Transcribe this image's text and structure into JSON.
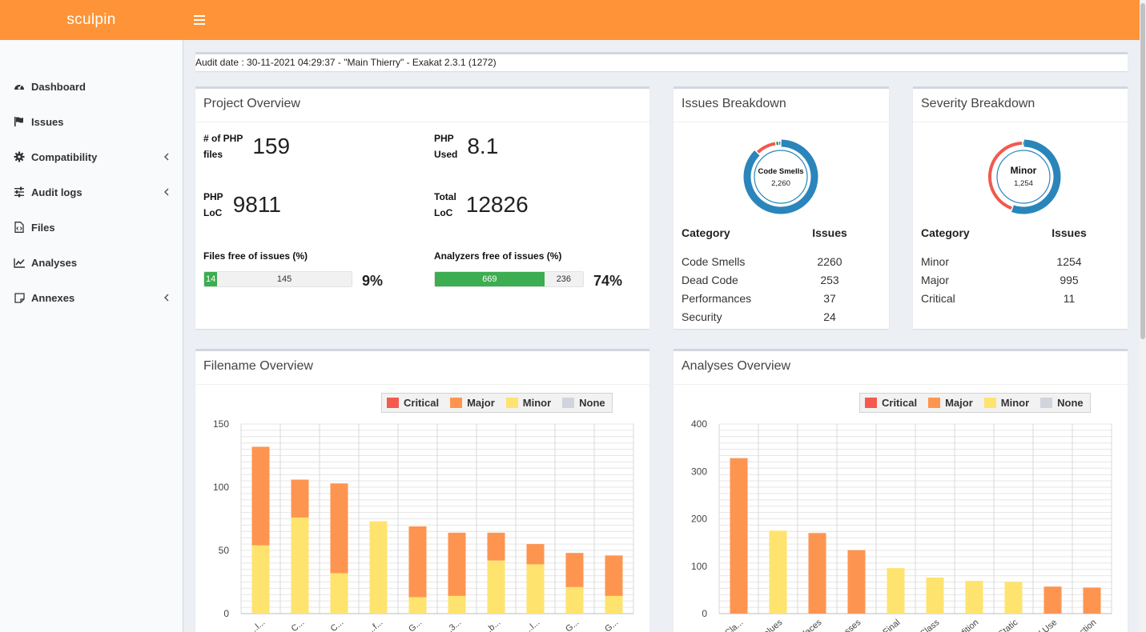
{
  "app": {
    "brand": "sculpin"
  },
  "sidebar": {
    "items": [
      {
        "label": "Dashboard",
        "icon": "dashboard-icon",
        "has_submenu": false
      },
      {
        "label": "Issues",
        "icon": "flag-icon",
        "has_submenu": false
      },
      {
        "label": "Compatibility",
        "icon": "gear-icon",
        "has_submenu": true
      },
      {
        "label": "Audit logs",
        "icon": "sliders-icon",
        "has_submenu": true
      },
      {
        "label": "Files",
        "icon": "file-code-icon",
        "has_submenu": false
      },
      {
        "label": "Analyses",
        "icon": "line-chart-icon",
        "has_submenu": false
      },
      {
        "label": "Annexes",
        "icon": "sticky-note-icon",
        "has_submenu": true
      }
    ]
  },
  "audit": {
    "text": "Audit date : 30-11-2021 04:29:37 - \"Main Thierry\" - Exakat 2.3.1 (1272)"
  },
  "project_overview": {
    "title": "Project Overview",
    "php_files": {
      "label_line1": "# of PHP",
      "label_line2": "files",
      "value": "159"
    },
    "php_used": {
      "label_line1": "PHP",
      "label_line2": "Used",
      "value": "8.1"
    },
    "php_loc": {
      "label_line1": "PHP",
      "label_line2": "LoC",
      "value": "9811"
    },
    "total_loc": {
      "label_line1": "Total",
      "label_line2": "LoC",
      "value": "12826"
    },
    "files_free": {
      "label": "Files free of issues (%)",
      "free": 14,
      "not_free": 145,
      "free_text": "14",
      "not_free_text": "145",
      "percent": "9%"
    },
    "analyzers_free": {
      "label": "Analyzers free of issues (%)",
      "free": 669,
      "not_free": 236,
      "free_text": "669",
      "not_free_text": "236",
      "percent": "74%"
    }
  },
  "issues_breakdown": {
    "title": "Issues Breakdown",
    "center_label": "Code Smells",
    "center_value": "2,260",
    "col_category": "Category",
    "col_issues": "Issues",
    "rows": [
      {
        "category": "Code Smells",
        "issues": "2260",
        "value": 2260,
        "color": "#2a85bb"
      },
      {
        "category": "Dead Code",
        "issues": "253",
        "value": 253,
        "color": "#f05a4f"
      },
      {
        "category": "Performances",
        "issues": "37",
        "value": 37,
        "color": "#1f9a57"
      },
      {
        "category": "Security",
        "issues": "24",
        "value": 24,
        "color": "#1b3f9a"
      }
    ]
  },
  "severity_breakdown": {
    "title": "Severity Breakdown",
    "center_label": "Minor",
    "center_value": "1,254",
    "col_category": "Category",
    "col_issues": "Issues",
    "rows": [
      {
        "category": "Minor",
        "issues": "1254",
        "value": 1254,
        "color": "#2a85bb"
      },
      {
        "category": "Major",
        "issues": "995",
        "value": 995,
        "color": "#f05a4f"
      },
      {
        "category": "Critical",
        "issues": "11",
        "value": 11,
        "color": "#1f9a57"
      }
    ]
  },
  "legend": [
    {
      "label": "Critical",
      "color": "#f55a4e"
    },
    {
      "label": "Major",
      "color": "#fd9551"
    },
    {
      "label": "Minor",
      "color": "#fee46e"
    },
    {
      "label": "None",
      "color": "#d0d4dc"
    }
  ],
  "filename_overview": {
    "title": "Filename Overview",
    "chart_data": {
      "type": "bar",
      "stacked": true,
      "ylim": [
        0,
        150
      ],
      "yticks": [
        "0",
        "50",
        "100",
        "150"
      ],
      "categories": [
        "...l...",
        "C...",
        "C...",
        "...f...",
        "G...",
        "...3...",
        "...b...",
        "...l...",
        "G...",
        "G..."
      ],
      "series": [
        {
          "name": "Minor",
          "values": [
            54,
            76,
            32,
            73,
            13,
            14,
            42,
            39,
            21,
            14
          ]
        },
        {
          "name": "Major",
          "values": [
            78,
            30,
            71,
            0,
            56,
            50,
            22,
            16,
            27,
            32
          ]
        }
      ],
      "grid": true,
      "legend": "top-right"
    }
  },
  "analyses_overview": {
    "title": "Analyses Overview",
    "chart_data": {
      "type": "bar",
      "stacked": true,
      "ylim": [
        0,
        400
      ],
      "yticks": [
        "0",
        "100",
        "200",
        "300",
        "400"
      ],
      "categories": [
        "...Cla...",
        "...Values",
        "...faces",
        "...asses",
        "...Final",
        "...Class",
        "...dition",
        "...Static",
        "...d Use",
        "...ction"
      ],
      "series": [
        {
          "name": "Major",
          "values": [
            328,
            0,
            170,
            134,
            0,
            0,
            0,
            0,
            57,
            55
          ]
        },
        {
          "name": "Minor",
          "values": [
            0,
            175,
            0,
            0,
            96,
            76,
            69,
            67,
            0,
            0
          ]
        }
      ],
      "grid": true,
      "legend": "top-right"
    }
  }
}
